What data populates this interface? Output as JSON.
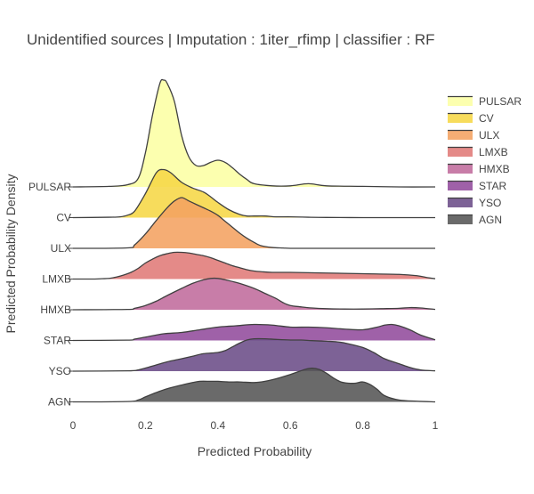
{
  "chart_data": {
    "type": "ridgeline",
    "title": "Unidentified sources | Imputation : 1iter_rfimp | classifier : RF",
    "xlabel": "Predicted Probability",
    "ylabel": "Predicted Probability Density",
    "xlim": [
      0,
      1
    ],
    "xticks": [
      0,
      0.2,
      0.4,
      0.6,
      0.8,
      1
    ],
    "xtick_labels": [
      "0",
      "0.2",
      "0.4",
      "0.6",
      "0.8",
      "1"
    ],
    "grid": false,
    "legend_position": "top-right",
    "line_color": "#404040",
    "series": [
      {
        "name": "PULSAR",
        "color": "#fcffa4",
        "x": [
          0,
          0.1,
          0.15,
          0.18,
          0.2,
          0.22,
          0.24,
          0.25,
          0.26,
          0.28,
          0.3,
          0.32,
          0.34,
          0.36,
          0.38,
          0.4,
          0.42,
          0.44,
          0.46,
          0.48,
          0.5,
          0.55,
          0.6,
          0.65,
          0.7,
          0.8,
          0.9,
          1.0
        ],
        "y": [
          0,
          0.005,
          0.02,
          0.08,
          0.32,
          0.68,
          0.97,
          1.0,
          0.97,
          0.8,
          0.48,
          0.28,
          0.2,
          0.2,
          0.23,
          0.25,
          0.23,
          0.18,
          0.12,
          0.07,
          0.03,
          0.01,
          0.01,
          0.03,
          0.01,
          0.005,
          0,
          0
        ]
      },
      {
        "name": "CV",
        "color": "#f6d746",
        "x": [
          0,
          0.1,
          0.13,
          0.15,
          0.17,
          0.2,
          0.23,
          0.25,
          0.27,
          0.3,
          0.33,
          0.36,
          0.38,
          0.4,
          0.43,
          0.46,
          0.48,
          0.5,
          0.53,
          0.56,
          0.6,
          0.65,
          0.7,
          0.8,
          0.9,
          1.0
        ],
        "y": [
          0,
          0.005,
          0.01,
          0.03,
          0.08,
          0.3,
          0.56,
          0.6,
          0.56,
          0.44,
          0.37,
          0.32,
          0.26,
          0.19,
          0.1,
          0.04,
          0.02,
          0.02,
          0.02,
          0.01,
          0.01,
          0.005,
          0.002,
          0,
          0,
          0
        ]
      },
      {
        "name": "ULX",
        "color": "#f4a261",
        "x": [
          0,
          0.15,
          0.17,
          0.2,
          0.23,
          0.26,
          0.28,
          0.3,
          0.32,
          0.34,
          0.36,
          0.38,
          0.4,
          0.42,
          0.44,
          0.46,
          0.48,
          0.5,
          0.52,
          0.55,
          0.58,
          0.6,
          0.65,
          0.7,
          0.8,
          1.0
        ],
        "y": [
          0,
          0.005,
          0.04,
          0.17,
          0.33,
          0.48,
          0.56,
          0.6,
          0.56,
          0.52,
          0.48,
          0.44,
          0.39,
          0.32,
          0.25,
          0.18,
          0.12,
          0.07,
          0.03,
          0.01,
          0.004,
          0,
          0,
          0,
          0,
          0
        ]
      },
      {
        "name": "LMXB",
        "color": "#e07a78",
        "x": [
          0,
          0.06,
          0.08,
          0.1,
          0.12,
          0.14,
          0.16,
          0.18,
          0.2,
          0.22,
          0.24,
          0.26,
          0.28,
          0.3,
          0.32,
          0.34,
          0.36,
          0.38,
          0.4,
          0.42,
          0.44,
          0.46,
          0.48,
          0.5,
          0.52,
          0.55,
          0.6,
          0.7,
          0.8,
          0.9,
          0.95,
          0.98,
          1.0
        ],
        "y": [
          0,
          0,
          0.005,
          0.01,
          0.03,
          0.06,
          0.1,
          0.16,
          0.24,
          0.3,
          0.35,
          0.38,
          0.4,
          0.4,
          0.39,
          0.37,
          0.35,
          0.32,
          0.28,
          0.24,
          0.2,
          0.17,
          0.14,
          0.12,
          0.11,
          0.1,
          0.1,
          0.09,
          0.08,
          0.07,
          0.05,
          0.02,
          0.005
        ]
      },
      {
        "name": "HMXB",
        "color": "#c06b9c",
        "x": [
          0,
          0.15,
          0.17,
          0.2,
          0.23,
          0.26,
          0.3,
          0.33,
          0.36,
          0.38,
          0.4,
          0.43,
          0.46,
          0.5,
          0.53,
          0.56,
          0.58,
          0.6,
          0.63,
          0.66,
          0.7,
          0.75,
          0.8,
          0.85,
          0.9,
          0.93,
          0.96,
          1.0
        ],
        "y": [
          0,
          0.005,
          0.02,
          0.06,
          0.12,
          0.2,
          0.3,
          0.37,
          0.42,
          0.44,
          0.44,
          0.41,
          0.37,
          0.3,
          0.23,
          0.16,
          0.1,
          0.06,
          0.04,
          0.025,
          0.015,
          0.01,
          0.01,
          0.015,
          0.02,
          0.03,
          0.025,
          0.005
        ]
      },
      {
        "name": "STAR",
        "color": "#924b9c",
        "x": [
          0,
          0.15,
          0.17,
          0.2,
          0.25,
          0.3,
          0.35,
          0.4,
          0.45,
          0.5,
          0.55,
          0.6,
          0.65,
          0.7,
          0.75,
          0.8,
          0.84,
          0.86,
          0.88,
          0.9,
          0.93,
          0.96,
          1.0
        ],
        "y": [
          0,
          0.005,
          0.02,
          0.05,
          0.1,
          0.12,
          0.16,
          0.2,
          0.22,
          0.24,
          0.23,
          0.2,
          0.2,
          0.19,
          0.17,
          0.16,
          0.2,
          0.23,
          0.24,
          0.22,
          0.16,
          0.08,
          0.01
        ]
      },
      {
        "name": "YSO",
        "color": "#6b4c87",
        "x": [
          0,
          0.15,
          0.18,
          0.2,
          0.23,
          0.26,
          0.3,
          0.33,
          0.36,
          0.4,
          0.42,
          0.44,
          0.46,
          0.48,
          0.5,
          0.53,
          0.56,
          0.6,
          0.63,
          0.66,
          0.7,
          0.73,
          0.76,
          0.8,
          0.83,
          0.86,
          0.9,
          0.93,
          0.96,
          1.0
        ],
        "y": [
          0,
          0.005,
          0.02,
          0.05,
          0.1,
          0.15,
          0.2,
          0.24,
          0.28,
          0.3,
          0.33,
          0.39,
          0.45,
          0.5,
          0.52,
          0.52,
          0.51,
          0.5,
          0.5,
          0.49,
          0.48,
          0.47,
          0.44,
          0.38,
          0.3,
          0.2,
          0.12,
          0.06,
          0.02,
          0.005
        ]
      },
      {
        "name": "AGN",
        "color": "#555555",
        "x": [
          0,
          0.15,
          0.18,
          0.2,
          0.23,
          0.26,
          0.3,
          0.33,
          0.35,
          0.38,
          0.4,
          0.43,
          0.46,
          0.5,
          0.53,
          0.56,
          0.6,
          0.62,
          0.64,
          0.66,
          0.68,
          0.7,
          0.72,
          0.74,
          0.76,
          0.78,
          0.8,
          0.82,
          0.84,
          0.86,
          0.9,
          0.95,
          1.0
        ],
        "y": [
          0,
          0.005,
          0.03,
          0.08,
          0.15,
          0.21,
          0.27,
          0.31,
          0.33,
          0.33,
          0.33,
          0.32,
          0.32,
          0.31,
          0.33,
          0.37,
          0.44,
          0.48,
          0.52,
          0.54,
          0.52,
          0.46,
          0.38,
          0.32,
          0.3,
          0.3,
          0.32,
          0.28,
          0.2,
          0.1,
          0.03,
          0.01,
          0
        ]
      }
    ]
  }
}
